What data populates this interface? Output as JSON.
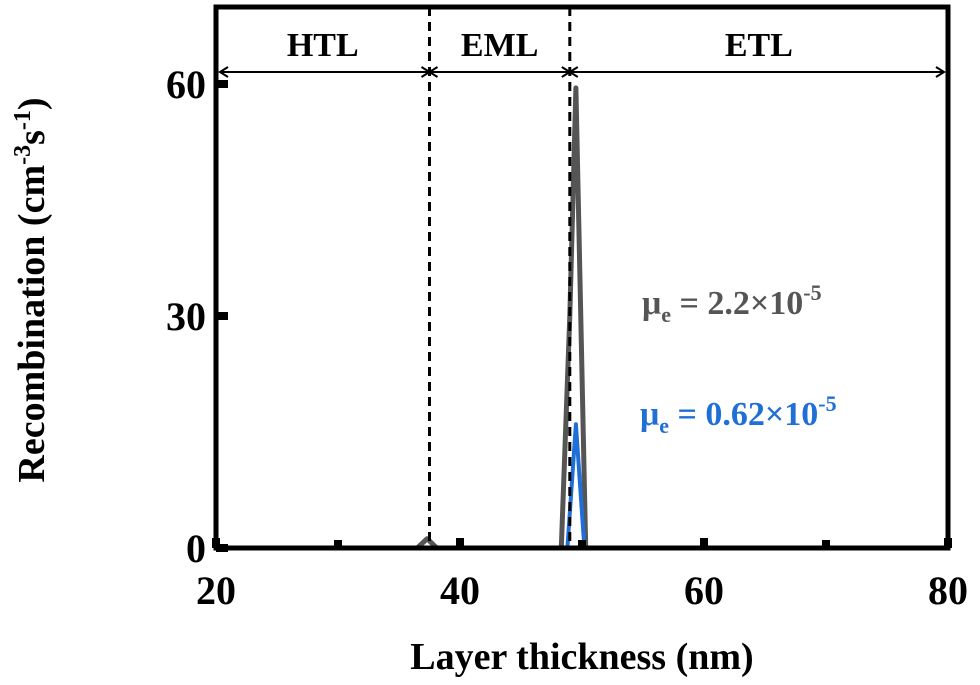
{
  "chart_data": {
    "type": "line",
    "xlabel": "Layer thickness (nm)",
    "ylabel_main": "Recombination (cm",
    "ylabel_sup1": "-3",
    "ylabel_mid": "s",
    "ylabel_sup2": "-1",
    "ylabel_end": ")",
    "xlim": [
      20,
      80
    ],
    "ylim": [
      0,
      70
    ],
    "xticks": [
      20,
      40,
      60,
      80
    ],
    "yticks": [
      0,
      30,
      60
    ],
    "grid": false,
    "regions": [
      {
        "label": "HTL",
        "from": 20,
        "to": 37.5
      },
      {
        "label": "EML",
        "from": 37.5,
        "to": 49.0
      },
      {
        "label": "ETL",
        "from": 49.0,
        "to": 80
      }
    ],
    "boundaries": [
      37.5,
      49.0
    ],
    "series": [
      {
        "color": "#555555",
        "x": [
          20,
          36.5,
          37.3,
          38.1,
          48.3,
          49.0,
          49.5,
          50.3,
          80
        ],
        "y": [
          0,
          0,
          1.2,
          0,
          0,
          30,
          59.5,
          0,
          0
        ]
      },
      {
        "color": "#1f6fd6",
        "x": [
          20,
          48.8,
          49.5,
          50.2,
          80
        ],
        "y": [
          0,
          0,
          16,
          0,
          0
        ]
      }
    ],
    "annotations": [
      {
        "prefix": "μ",
        "sub": "e",
        "text": " = 2.2×10",
        "sup": "-5",
        "color": "#555555"
      },
      {
        "prefix": "μ",
        "sub": "e",
        "text": " = 0.62×10",
        "sup": "-5",
        "color": "#1f6fd6"
      }
    ]
  }
}
